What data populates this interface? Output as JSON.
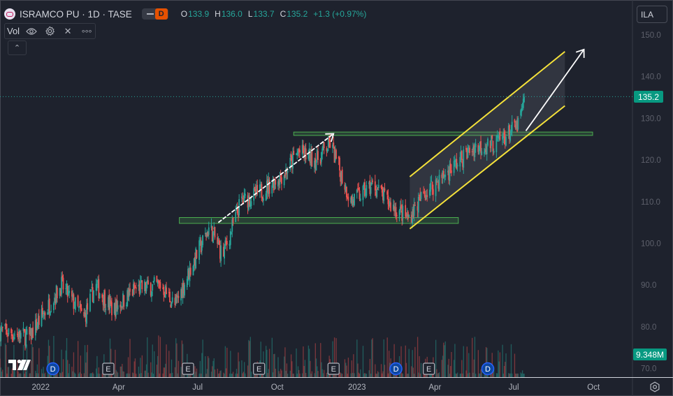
{
  "header": {
    "symbol": "ISRAMCO PU · 1D · TASE",
    "symbol_icon": "symbol-logo-icon",
    "data_badge": "D",
    "ohlc": {
      "o_label": "O",
      "o_value": "133.9",
      "h_label": "H",
      "h_value": "136.0",
      "l_label": "L",
      "l_value": "133.7",
      "c_label": "C",
      "c_value": "135.2",
      "change": "+1.3 (+0.97%)"
    }
  },
  "indicator": {
    "label": "Vol",
    "buttons": [
      "eye-icon",
      "gear-icon",
      "close-icon",
      "more-icon"
    ],
    "close_glyph": "✕",
    "more_glyph": "∘∘∘"
  },
  "collapse_glyph": "⌃",
  "currency": "ILA",
  "price_axis": {
    "ticks": [
      "150.0",
      "140.0",
      "130.0",
      "120.0",
      "110.0",
      "100.0",
      "90.0",
      "80.0",
      "70.0"
    ],
    "last_price": "135.2",
    "last_volume": "9.348M"
  },
  "time_axis": {
    "ticks": [
      "2022",
      "Apr",
      "Jul",
      "Oct",
      "2023",
      "Apr",
      "Jul",
      "Oct"
    ]
  },
  "event_markers": [
    "D",
    "E",
    "E",
    "E",
    "E",
    "D",
    "E",
    "D"
  ],
  "colors": {
    "background": "#1e222d",
    "up": "#26a69a",
    "down": "#ef5350",
    "channel": "#f5e23a",
    "zone": "#4caf50",
    "arrow": "#ffffff"
  },
  "drawings": {
    "support_zone": [
      104.8,
      106.2
    ],
    "resistance_zone": [
      125.9,
      126.7
    ],
    "channel_upper": [
      [
        "2023-03-03",
        116.0
      ],
      [
        "2023-08-29",
        146.0
      ]
    ],
    "channel_lower": [
      [
        "2023-03-03",
        103.5
      ],
      [
        "2023-08-29",
        133.0
      ]
    ]
  },
  "chart_data": {
    "type": "candlestick",
    "title": "ISRAMCO PU · 1D · TASE",
    "xlabel": "",
    "ylabel": "",
    "x_range": [
      "2021-11-15",
      "2023-11-15"
    ],
    "ylim": [
      68,
      155
    ],
    "price_anchor_points": [
      [
        "2021-12-20",
        78
      ],
      [
        "2022-01-25",
        90
      ],
      [
        "2022-02-20",
        82
      ],
      [
        "2022-03-05",
        90
      ],
      [
        "2022-03-25",
        84
      ],
      [
        "2022-04-20",
        89
      ],
      [
        "2022-05-20",
        90
      ],
      [
        "2022-06-05",
        85
      ],
      [
        "2022-06-25",
        95
      ],
      [
        "2022-07-15",
        104
      ],
      [
        "2022-07-30",
        97
      ],
      [
        "2022-08-20",
        110
      ],
      [
        "2022-09-10",
        112
      ],
      [
        "2022-10-10",
        117
      ],
      [
        "2022-10-25",
        122
      ],
      [
        "2022-11-15",
        120
      ],
      [
        "2022-12-01",
        124
      ],
      [
        "2022-12-25",
        110
      ],
      [
        "2023-01-20",
        114
      ],
      [
        "2023-02-10",
        109
      ],
      [
        "2023-03-01",
        106
      ],
      [
        "2023-03-20",
        112
      ],
      [
        "2023-04-20",
        118
      ],
      [
        "2023-05-15",
        123
      ],
      [
        "2023-06-10",
        124
      ],
      [
        "2023-07-05",
        128
      ],
      [
        "2023-07-15",
        135.2
      ]
    ],
    "last": {
      "open": 133.9,
      "high": 136.0,
      "low": 133.7,
      "close": 135.2,
      "change": 1.3,
      "change_pct": 0.97
    },
    "volume_last": "9.348M"
  }
}
